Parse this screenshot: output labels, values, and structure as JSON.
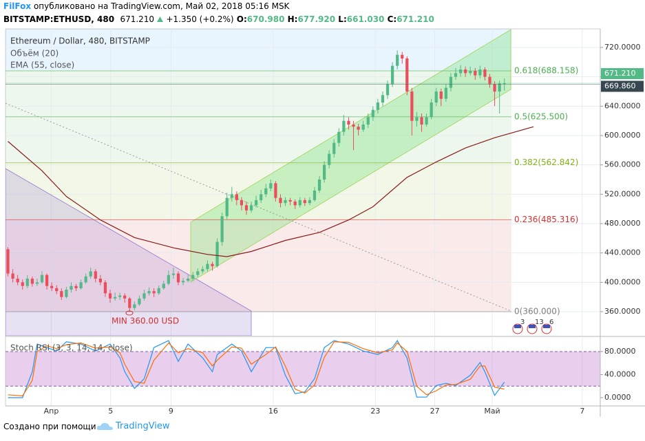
{
  "header": {
    "author": "FilFox",
    "published": "опубликовано на TradingView.com, Май 02, 2018 05:16 MSK",
    "symbol": "BITSTAMP:ETHUSD, 480",
    "last": "671.210",
    "change": "+1.350 (+0.2%)",
    "ohlc": [
      {
        "label": "O:",
        "value": "670.980"
      },
      {
        "label": "H:",
        "value": "677.920"
      },
      {
        "label": "L:",
        "value": "661.030"
      },
      {
        "label": "C:",
        "value": "671.210"
      }
    ]
  },
  "chart_data": [
    {
      "type": "candlestick",
      "title": "Ethereum / Dollar, 480, BITSTAMP",
      "indicators": [
        "Объём (20)"
      ],
      "up_color": "#53b987",
      "down_color": "#eb4d5c",
      "grid": true,
      "ohlc": [
        [
          445,
          448,
          408,
          412
        ],
        [
          412,
          418,
          400,
          405
        ],
        [
          405,
          410,
          396,
          400
        ],
        [
          400,
          404,
          390,
          395
        ],
        [
          395,
          410,
          392,
          405
        ],
        [
          405,
          408,
          394,
          398
        ],
        [
          398,
          405,
          395,
          400
        ],
        [
          400,
          415,
          398,
          410
        ],
        [
          410,
          412,
          390,
          395
        ],
        [
          395,
          400,
          388,
          392
        ],
        [
          392,
          396,
          384,
          388
        ],
        [
          388,
          392,
          376,
          380
        ],
        [
          380,
          394,
          378,
          390
        ],
        [
          390,
          400,
          386,
          395
        ],
        [
          395,
          398,
          388,
          392
        ],
        [
          392,
          404,
          390,
          400
        ],
        [
          400,
          412,
          398,
          408
        ],
        [
          408,
          420,
          405,
          415
        ],
        [
          415,
          418,
          400,
          405
        ],
        [
          405,
          410,
          396,
          400
        ],
        [
          400,
          403,
          380,
          385
        ],
        [
          385,
          390,
          372,
          378
        ],
        [
          378,
          386,
          375,
          380
        ],
        [
          380,
          386,
          376,
          382
        ],
        [
          382,
          385,
          372,
          378
        ],
        [
          378,
          380,
          360,
          365
        ],
        [
          365,
          374,
          362,
          370
        ],
        [
          370,
          382,
          368,
          378
        ],
        [
          378,
          390,
          375,
          385
        ],
        [
          385,
          393,
          382,
          388
        ],
        [
          388,
          392,
          380,
          385
        ],
        [
          385,
          396,
          383,
          392
        ],
        [
          392,
          402,
          390,
          398
        ],
        [
          398,
          416,
          396,
          410
        ],
        [
          410,
          420,
          405,
          412
        ],
        [
          412,
          415,
          396,
          400
        ],
        [
          400,
          406,
          396,
          402
        ],
        [
          402,
          410,
          400,
          405
        ],
        [
          405,
          414,
          402,
          410
        ],
        [
          410,
          419,
          407,
          415
        ],
        [
          415,
          422,
          412,
          418
        ],
        [
          418,
          430,
          415,
          425
        ],
        [
          425,
          428,
          416,
          422
        ],
        [
          422,
          460,
          420,
          455
        ],
        [
          455,
          495,
          450,
          490
        ],
        [
          490,
          522,
          486,
          515
        ],
        [
          515,
          530,
          510,
          520
        ],
        [
          520,
          524,
          505,
          512
        ],
        [
          512,
          516,
          498,
          505
        ],
        [
          505,
          510,
          492,
          498
        ],
        [
          498,
          510,
          495,
          505
        ],
        [
          505,
          518,
          502,
          512
        ],
        [
          512,
          526,
          508,
          520
        ],
        [
          520,
          534,
          516,
          528
        ],
        [
          528,
          540,
          524,
          535
        ],
        [
          535,
          538,
          510,
          515
        ],
        [
          515,
          520,
          502,
          508
        ],
        [
          508,
          516,
          504,
          512
        ],
        [
          512,
          515,
          505,
          510
        ],
        [
          510,
          513,
          500,
          505
        ],
        [
          505,
          516,
          502,
          512
        ],
        [
          512,
          515,
          504,
          508
        ],
        [
          508,
          516,
          505,
          512
        ],
        [
          512,
          530,
          510,
          525
        ],
        [
          525,
          545,
          522,
          540
        ],
        [
          540,
          565,
          536,
          560
        ],
        [
          560,
          580,
          555,
          575
        ],
        [
          575,
          595,
          570,
          590
        ],
        [
          590,
          610,
          585,
          605
        ],
        [
          605,
          628,
          600,
          620
        ],
        [
          620,
          625,
          608,
          615
        ],
        [
          615,
          620,
          580,
          612
        ],
        [
          612,
          616,
          600,
          608
        ],
        [
          608,
          620,
          605,
          615
        ],
        [
          615,
          630,
          610,
          625
        ],
        [
          625,
          640,
          620,
          635
        ],
        [
          635,
          650,
          630,
          645
        ],
        [
          645,
          660,
          640,
          655
        ],
        [
          655,
          675,
          650,
          670
        ],
        [
          670,
          700,
          666,
          695
        ],
        [
          695,
          716,
          690,
          710
        ],
        [
          710,
          714,
          698,
          705
        ],
        [
          705,
          708,
          655,
          660
        ],
        [
          660,
          665,
          600,
          620
        ],
        [
          620,
          632,
          612,
          625
        ],
        [
          625,
          630,
          605,
          615
        ],
        [
          615,
          630,
          612,
          625
        ],
        [
          625,
          650,
          622,
          645
        ],
        [
          645,
          665,
          640,
          660
        ],
        [
          660,
          664,
          640,
          650
        ],
        [
          650,
          670,
          646,
          665
        ],
        [
          665,
          685,
          660,
          680
        ],
        [
          680,
          692,
          676,
          685
        ],
        [
          685,
          696,
          680,
          690
        ],
        [
          690,
          694,
          680,
          685
        ],
        [
          685,
          694,
          682,
          688
        ],
        [
          688,
          692,
          676,
          682
        ],
        [
          682,
          695,
          678,
          690
        ],
        [
          690,
          693,
          675,
          680
        ],
        [
          680,
          684,
          665,
          670
        ],
        [
          670,
          674,
          640,
          660
        ],
        [
          660,
          675,
          630,
          670.98
        ],
        [
          670.98,
          677.92,
          661.03,
          671.21
        ]
      ],
      "ylim": [
        327.2,
        745.3
      ],
      "xlim": [
        -0.5,
        121.7
      ],
      "yticks": [
        {
          "value": 360,
          "label": "360.0000"
        },
        {
          "value": 400,
          "label": "400.0000"
        },
        {
          "value": 440,
          "label": "440.0000"
        },
        {
          "value": 480,
          "label": "480.0000"
        },
        {
          "value": 520,
          "label": "520.0000"
        },
        {
          "value": 560,
          "label": "560.0000"
        },
        {
          "value": 600,
          "label": "600.0000"
        },
        {
          "value": 640,
          "label": "640.0000"
        },
        {
          "value": 680,
          "label": "680.0000"
        },
        {
          "value": 720,
          "label": "720.0000"
        }
      ],
      "ema": {
        "name": "EMA (55, close)",
        "color": "#8b1a1a",
        "x": [
          0,
          7,
          12,
          19,
          26,
          34,
          41,
          45,
          50,
          57,
          64,
          70,
          75,
          82,
          88,
          94,
          100,
          108
        ],
        "values": [
          592,
          552,
          517,
          485,
          461,
          447,
          438,
          435,
          442,
          457,
          468,
          485,
          503,
          543,
          564,
          583,
          597,
          612
        ]
      },
      "fib": [
        {
          "label": "0.618(688.158)",
          "value": 688.158,
          "color": "#4caf50"
        },
        {
          "label": "0.5(625.500)",
          "value": 625.5,
          "color": "#4caf50"
        },
        {
          "label": "0.382(562.842)",
          "value": 562.842,
          "color": "#81b214"
        },
        {
          "label": "0.236(485.316)",
          "value": 485.316,
          "color": "#d32f2f"
        },
        {
          "label": "0(360.000)",
          "value": 360,
          "color": "#808080"
        }
      ],
      "price_tags": [
        {
          "value": 671.21,
          "label": "671.210",
          "color": "#53b987"
        },
        {
          "value": 669.86,
          "label": "669.860",
          "color": "#37474f"
        }
      ],
      "annotation": "MIN 360.00 USD",
      "events": [
        "3",
        "13",
        "6"
      ]
    },
    {
      "type": "line",
      "title": "Stoch RSI (3, 3, 14, 14, close)",
      "ylim": [
        -14.3,
        105.1
      ],
      "xlim": [
        -0.5,
        121.7
      ],
      "band": [
        20,
        80
      ],
      "yticks": [
        {
          "value": 0,
          "label": "0.0000"
        },
        {
          "value": 40,
          "label": "40.0000"
        },
        {
          "value": 80,
          "label": "80.0000"
        }
      ],
      "xticks": [
        {
          "value": 8.9,
          "label": "Апр"
        },
        {
          "value": 21.1,
          "label": "5"
        },
        {
          "value": 33.5,
          "label": "9"
        },
        {
          "value": 54.5,
          "label": "16"
        },
        {
          "value": 75.5,
          "label": "23"
        },
        {
          "value": 87.7,
          "label": "27"
        },
        {
          "value": 99.5,
          "label": "Май"
        },
        {
          "value": 118,
          "label": "7"
        }
      ],
      "series": [
        {
          "color": "#2196f3",
          "x": [
            0,
            3,
            5,
            6,
            8,
            10,
            12,
            15,
            18,
            21,
            23,
            24,
            26,
            28,
            30,
            33,
            35,
            37,
            40,
            42,
            43,
            46,
            48,
            50,
            53,
            55,
            57,
            59,
            61,
            63,
            65,
            67,
            70,
            73,
            76,
            79,
            80,
            82,
            84,
            86,
            88,
            90,
            92,
            95,
            97,
            98,
            100,
            102
          ],
          "values": [
            0,
            0,
            45,
            93,
            87,
            81,
            97,
            93,
            81,
            93,
            69,
            45,
            16,
            33,
            87,
            99,
            63,
            93,
            69,
            45,
            75,
            93,
            81,
            45,
            87,
            87,
            39,
            7,
            10,
            33,
            87,
            99,
            93,
            81,
            75,
            87,
            99,
            69,
            1,
            1,
            21,
            25,
            21,
            39,
            61,
            45,
            4,
            27
          ]
        },
        {
          "color": "#ff6d00",
          "x": [
            0,
            3,
            5,
            6,
            8,
            10,
            12,
            15,
            18,
            21,
            23,
            24,
            26,
            28,
            30,
            33,
            35,
            37,
            40,
            42,
            43,
            46,
            48,
            50,
            53,
            55,
            57,
            59,
            61,
            63,
            65,
            67,
            70,
            73,
            76,
            79,
            80,
            82,
            84,
            86,
            88,
            90,
            92,
            95,
            97,
            98,
            100,
            102
          ],
          "values": [
            5,
            3,
            30,
            80,
            90,
            85,
            92,
            95,
            86,
            88,
            78,
            58,
            28,
            25,
            65,
            95,
            78,
            85,
            78,
            55,
            65,
            88,
            86,
            58,
            75,
            88,
            55,
            15,
            8,
            22,
            70,
            97,
            96,
            85,
            78,
            83,
            95,
            80,
            20,
            5,
            12,
            22,
            23,
            32,
            55,
            55,
            18,
            15
          ]
        }
      ]
    }
  ],
  "footer": {
    "text": "Создано при помощи",
    "brand": "TradingView"
  }
}
